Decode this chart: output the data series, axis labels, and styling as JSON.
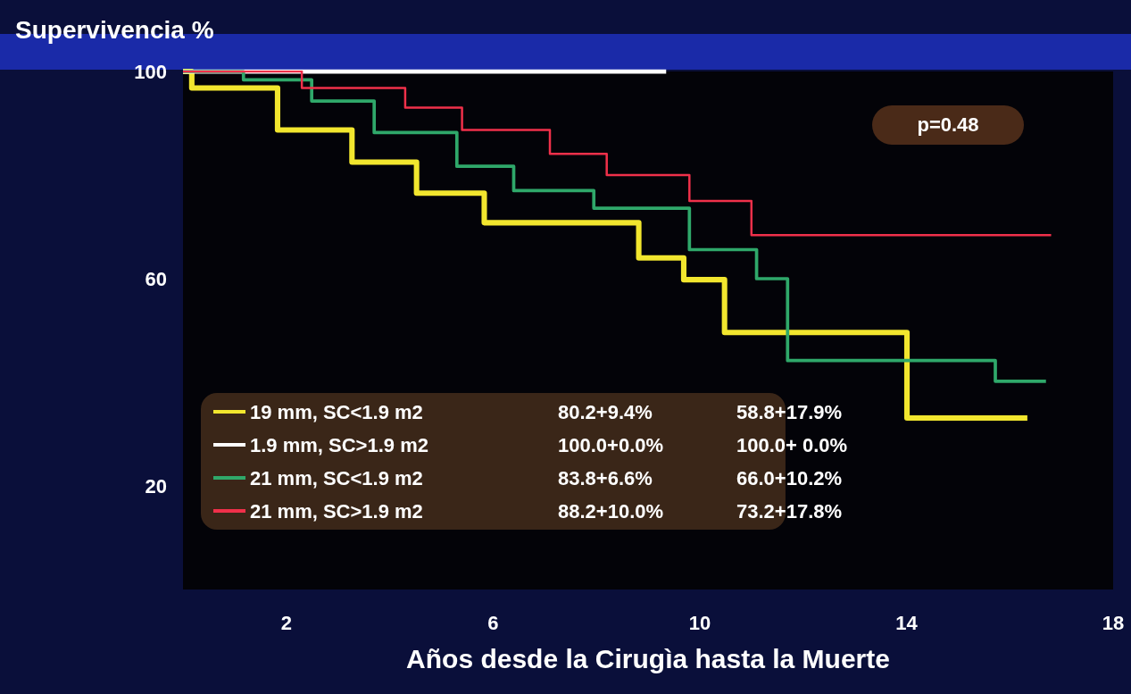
{
  "chart_data": {
    "type": "step",
    "title": "Supervivencia %",
    "xlabel": "Años desde la Cirugìa hasta la Muerte",
    "xlim": [
      0,
      18
    ],
    "xticks": [
      2,
      6,
      10,
      14,
      18
    ],
    "ylim": [
      0,
      100
    ],
    "yticks": [
      20,
      60,
      100
    ],
    "grid": false,
    "legend": "bottom left",
    "marker": "none",
    "line_style": "solid",
    "series": [
      {
        "name": "19 mm, SC<1.9 m2",
        "color": "#f2e62e",
        "x": [
          0,
          0.17,
          1.83,
          3.27,
          4.52,
          5.83,
          8.82,
          9.69,
          10.48,
          14.01,
          16.34
        ],
        "values": [
          100,
          96.8,
          88.7,
          82.5,
          76.5,
          70.8,
          64,
          59.8,
          49.6,
          33.1,
          33.1
        ]
      },
      {
        "name": "1.9 mm, SC>1.9 m2",
        "color": "#ffffff",
        "x": [
          0,
          9.35
        ],
        "values": [
          100,
          100
        ]
      },
      {
        "name": "21 mm, SC<1.9 m2",
        "color": "#2fa86a",
        "x": [
          0,
          1.17,
          2.49,
          3.7,
          5.3,
          6.4,
          7.95,
          9.8,
          11.1,
          11.7,
          15.72,
          16.7
        ],
        "values": [
          100,
          98.4,
          94.3,
          88.2,
          81.7,
          77,
          73.6,
          65.6,
          60,
          44.2,
          40.2,
          40.2
        ]
      },
      {
        "name": "21 mm, SC>1.9 m2",
        "color": "#f0304a",
        "x": [
          0,
          2.3,
          4.3,
          5.4,
          7.1,
          8.2,
          9.8,
          11.0,
          16.8
        ],
        "values": [
          100,
          96.8,
          93,
          88.7,
          84.1,
          80,
          75,
          68.4,
          68.4
        ]
      }
    ],
    "annotations": [
      "p=0.48",
      "80.2+9.4%",
      "58.8+17.9%",
      "100.0+0.0%",
      "100.0+ 0.0%",
      "83.8+6.6%",
      "66.0+10.2%",
      "88.2+10.0%",
      "73.2+17.8%"
    ]
  }
}
